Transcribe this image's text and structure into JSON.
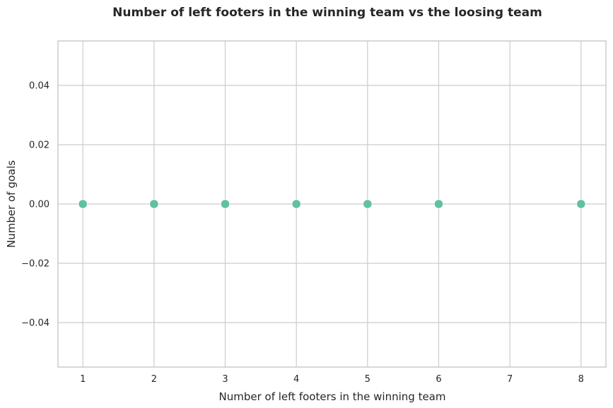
{
  "chart_data": {
    "type": "scatter",
    "title": "Number of left footers in the winning team vs the loosing team",
    "xlabel": "Number of left footers in the winning team",
    "ylabel": "Number of goals",
    "x": [
      1,
      2,
      3,
      4,
      5,
      6,
      8
    ],
    "y": [
      0,
      0,
      0,
      0,
      0,
      0,
      0
    ],
    "xlim": [
      0.65,
      8.35
    ],
    "ylim": [
      -0.055,
      0.055
    ],
    "xticks": [
      1,
      2,
      3,
      4,
      5,
      6,
      7,
      8
    ],
    "xtick_labels": [
      "1",
      "2",
      "3",
      "4",
      "5",
      "6",
      "7",
      "8"
    ],
    "yticks": [
      -0.04,
      -0.02,
      0,
      0.02,
      0.04
    ],
    "ytick_labels": [
      "−0.04",
      "−0.02",
      "0.00",
      "0.02",
      "0.04"
    ],
    "grid": true,
    "point_color": "#5fc1a0",
    "grid_color": "#cccccc"
  }
}
